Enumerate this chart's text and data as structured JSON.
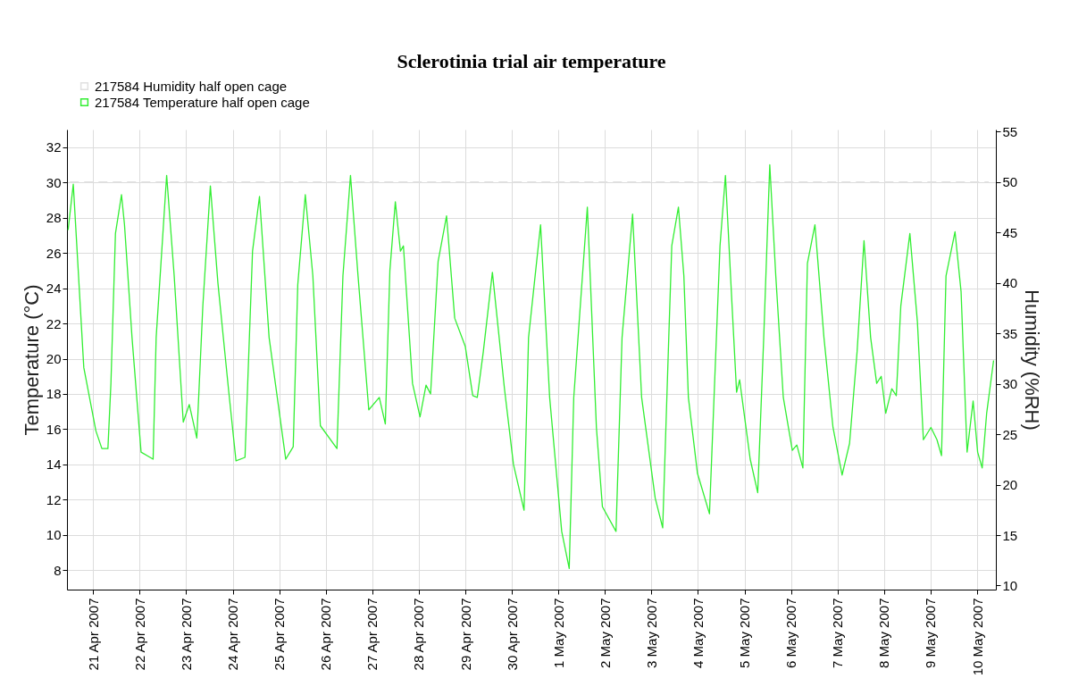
{
  "chart_data": {
    "type": "line",
    "title": "Sclerotinia trial air temperature",
    "ylabel": "Temperature (°C)",
    "y2label": "Humidity (%RH)",
    "xlim": [
      "2007-04-20T10:30",
      "2007-05-10T09:40"
    ],
    "xticks": [
      {
        "value": "2007-04-21",
        "label": "21 Apr 2007"
      },
      {
        "value": "2007-04-22",
        "label": "22 Apr 2007"
      },
      {
        "value": "2007-04-23",
        "label": "23 Apr 2007"
      },
      {
        "value": "2007-04-24",
        "label": "24 Apr 2007"
      },
      {
        "value": "2007-04-25",
        "label": "25 Apr 2007"
      },
      {
        "value": "2007-04-26",
        "label": "26 Apr 2007"
      },
      {
        "value": "2007-04-27",
        "label": "27 Apr 2007"
      },
      {
        "value": "2007-04-28",
        "label": "28 Apr 2007"
      },
      {
        "value": "2007-04-29",
        "label": "29 Apr 2007"
      },
      {
        "value": "2007-04-30",
        "label": "30 Apr 2007"
      },
      {
        "value": "2007-05-01",
        "label": "1 May 2007"
      },
      {
        "value": "2007-05-02",
        "label": "2 May 2007"
      },
      {
        "value": "2007-05-03",
        "label": "3 May 2007"
      },
      {
        "value": "2007-05-04",
        "label": "4 May 2007"
      },
      {
        "value": "2007-05-05",
        "label": "5 May 2007"
      },
      {
        "value": "2007-05-06",
        "label": "6 May 2007"
      },
      {
        "value": "2007-05-07",
        "label": "7 May 2007"
      },
      {
        "value": "2007-05-08",
        "label": "8 May 2007"
      },
      {
        "value": "2007-05-09",
        "label": "9 May 2007"
      },
      {
        "value": "2007-05-10",
        "label": "10 May 2007"
      }
    ],
    "ylim": [
      6.9,
      33
    ],
    "yticks": [
      8,
      10,
      12,
      14,
      16,
      18,
      20,
      22,
      24,
      26,
      28,
      30,
      32
    ],
    "y2lim": [
      9.6,
      55.2
    ],
    "y2ticks": [
      10,
      15,
      20,
      25,
      30,
      35,
      40,
      45,
      50,
      55
    ],
    "grid": true,
    "legend": "top left",
    "series": [
      {
        "name": "217584  Humidity half open cage",
        "color": "#e0e0e0",
        "axis": "y2",
        "line_style": "dashed",
        "x": [
          "2007-04-20T12:00",
          "2007-05-10T06:00"
        ],
        "values": [
          50,
          50
        ]
      },
      {
        "name": "217584  Temperature half open cage",
        "color": "#33ee33",
        "line_style": "solid",
        "x": [
          "2007-04-20T11:05",
          "2007-04-20T13:45",
          "2007-04-20T19:10",
          "2007-04-21T01:25",
          "2007-04-21T04:30",
          "2007-04-21T07:37",
          "2007-04-21T09:10",
          "2007-04-21T11:30",
          "2007-04-21T14:37",
          "2007-04-21T16:10",
          "2007-04-21T20:03",
          "2007-04-22T00:43",
          "2007-04-22T06:56",
          "2007-04-22T08:30",
          "2007-04-22T13:55",
          "2007-04-22T17:48",
          "2007-04-22T22:29",
          "2007-04-23T01:35",
          "2007-04-23T05:28",
          "2007-04-23T08:35",
          "2007-04-23T12:28",
          "2007-04-23T16:21",
          "2007-04-23T21:47",
          "2007-04-24T01:41",
          "2007-04-24T06:20",
          "2007-04-24T10:13",
          "2007-04-24T13:48",
          "2007-04-24T18:46",
          "2007-04-25T03:20",
          "2007-04-25T07:12",
          "2007-04-25T09:33",
          "2007-04-25T13:26",
          "2007-04-25T17:20",
          "2007-04-25T21:12",
          "2007-04-26T05:46",
          "2007-04-26T08:51",
          "2007-04-26T12:45",
          "2007-04-26T16:38",
          "2007-04-26T22:11",
          "2007-04-27T03:36",
          "2007-04-27T06:43",
          "2007-04-27T09:04",
          "2007-04-27T11:53",
          "2007-04-27T14:30",
          "2007-04-27T16:03",
          "2007-04-27T20:44",
          "2007-04-28T00:37",
          "2007-04-28T03:43",
          "2007-04-28T06:04",
          "2007-04-28T09:56",
          "2007-04-28T14:18",
          "2007-04-28T18:30",
          "2007-04-28T23:57",
          "2007-04-29T03:49",
          "2007-04-29T06:09",
          "2007-04-29T09:16",
          "2007-04-29T13:57",
          "2007-04-29T20:10",
          "2007-04-30T00:49",
          "2007-04-30T06:16",
          "2007-04-30T08:36",
          "2007-04-30T14:48",
          "2007-04-30T19:29",
          "2007-05-01T01:42",
          "2007-05-01T05:35",
          "2007-05-01T07:55",
          "2007-05-01T14:56",
          "2007-05-01T19:36",
          "2007-05-01T22:42",
          "2007-05-02T05:43",
          "2007-05-02T08:50",
          "2007-05-02T14:16",
          "2007-05-02T18:56",
          "2007-05-03T01:55",
          "2007-05-03T05:48",
          "2007-05-03T08:56",
          "2007-05-03T10:29",
          "2007-05-03T13:55",
          "2007-05-03T16:43",
          "2007-05-03T19:03",
          "2007-05-03T23:43",
          "2007-05-04T05:56",
          "2007-05-04T08:17",
          "2007-05-04T11:22",
          "2007-05-04T14:10",
          "2007-05-04T17:35",
          "2007-05-04T19:55",
          "2007-05-04T21:29",
          "2007-05-05T02:56",
          "2007-05-05T06:49",
          "2007-05-05T09:55",
          "2007-05-05T13:02",
          "2007-05-05T16:08",
          "2007-05-05T20:01",
          "2007-05-06T00:40",
          "2007-05-06T03:00",
          "2007-05-06T06:07",
          "2007-05-06T08:27",
          "2007-05-06T12:20",
          "2007-05-06T16:59",
          "2007-05-06T21:39",
          "2007-05-07T02:20",
          "2007-05-07T06:12",
          "2007-05-07T10:05",
          "2007-05-07T13:39",
          "2007-05-07T17:04",
          "2007-05-07T20:11",
          "2007-05-07T22:31",
          "2007-05-08T00:52",
          "2007-05-08T03:58",
          "2007-05-08T06:18",
          "2007-05-08T08:38",
          "2007-05-08T13:18",
          "2007-05-08T17:11",
          "2007-05-08T20:17",
          "2007-05-09T00:10",
          "2007-05-09T03:17",
          "2007-05-09T05:37",
          "2007-05-09T07:57",
          "2007-05-09T12:36",
          "2007-05-09T15:43",
          "2007-05-09T18:49",
          "2007-05-09T21:56",
          "2007-05-10T00:16",
          "2007-05-10T02:36",
          "2007-05-10T04:55",
          "2007-05-10T08:30"
        ],
        "values": [
          27.3,
          29.9,
          19.5,
          15.9,
          14.9,
          14.9,
          18.6,
          27.1,
          29.3,
          27.6,
          21.2,
          14.7,
          14.3,
          21.2,
          30.4,
          24.7,
          16.4,
          17.4,
          15.5,
          23.0,
          29.8,
          24.3,
          18.3,
          14.2,
          14.4,
          26.1,
          29.2,
          21.2,
          14.3,
          15.0,
          24.2,
          29.3,
          24.7,
          16.2,
          14.9,
          24.7,
          30.4,
          24.7,
          17.1,
          17.8,
          16.3,
          25.0,
          28.9,
          26.1,
          26.4,
          18.6,
          16.7,
          18.5,
          18.0,
          25.5,
          28.1,
          22.3,
          20.7,
          17.9,
          17.8,
          20.4,
          24.9,
          18.3,
          14.0,
          11.4,
          21.2,
          27.6,
          17.8,
          10.2,
          8.1,
          17.8,
          28.6,
          16.1,
          11.6,
          10.2,
          21.2,
          28.2,
          17.8,
          12.1,
          10.4,
          21.2,
          26.4,
          28.6,
          24.7,
          17.8,
          13.5,
          11.2,
          17.8,
          26.4,
          30.4,
          23.0,
          18.1,
          18.8,
          14.3,
          12.4,
          21.2,
          31.0,
          24.7,
          17.8,
          14.8,
          15.1,
          13.8,
          25.4,
          27.6,
          21.2,
          16.1,
          13.4,
          15.2,
          20.4,
          26.7,
          21.2,
          18.6,
          19.0,
          16.9,
          18.3,
          17.9,
          23.0,
          27.1,
          22.1,
          15.4,
          16.1,
          15.4,
          14.5,
          24.7,
          27.2,
          23.8,
          14.7,
          17.6,
          14.7,
          13.8,
          16.9,
          19.9
        ]
      }
    ]
  }
}
